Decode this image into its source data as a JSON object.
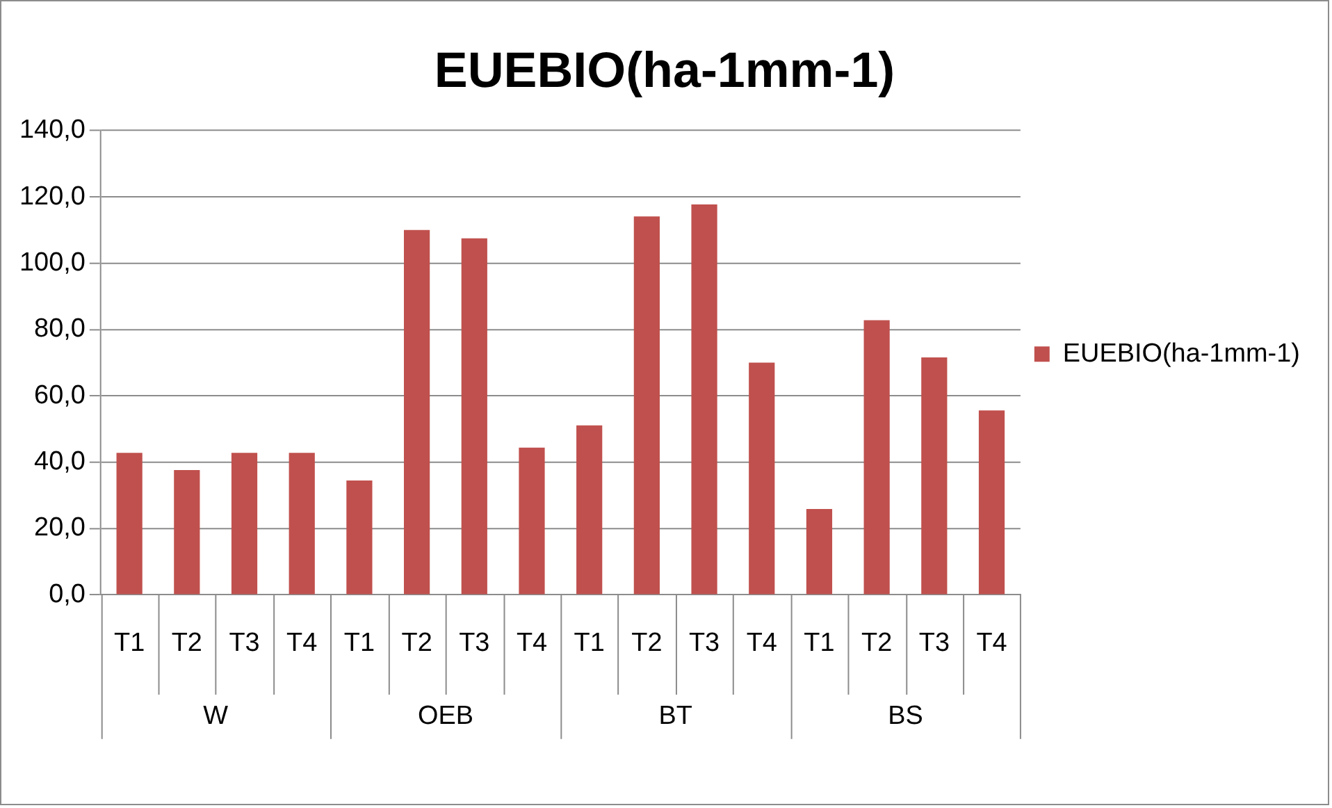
{
  "chart_data": {
    "type": "bar",
    "title": "EUEBIO(ha-1mm-1)",
    "categories": [
      "T1",
      "T2",
      "T3",
      "T4",
      "T1",
      "T2",
      "T3",
      "T4",
      "T1",
      "T2",
      "T3",
      "T4",
      "T1",
      "T2",
      "T3",
      "T4"
    ],
    "annotations": [
      "W",
      "OEB",
      "BT",
      "BS"
    ],
    "series": [
      {
        "name": "EUEBIO(ha-1mm-1)",
        "color": "#c0504d",
        "values": [
          42.8,
          37.6,
          42.8,
          42.8,
          34.5,
          110.0,
          107.5,
          44.4,
          51.1,
          114.1,
          117.7,
          70.0,
          25.9,
          82.8,
          71.6,
          55.6
        ]
      }
    ],
    "ylim": [
      0,
      140
    ],
    "yticks": [
      {
        "value": 0,
        "label": "0,0"
      },
      {
        "value": 20,
        "label": "20,0"
      },
      {
        "value": 40,
        "label": "40,0"
      },
      {
        "value": 60,
        "label": "60,0"
      },
      {
        "value": 80,
        "label": "80,0"
      },
      {
        "value": 100,
        "label": "100,0"
      },
      {
        "value": 120,
        "label": "120,0"
      },
      {
        "value": 140,
        "label": "140,0"
      }
    ],
    "grid": "y",
    "legend": "right"
  }
}
